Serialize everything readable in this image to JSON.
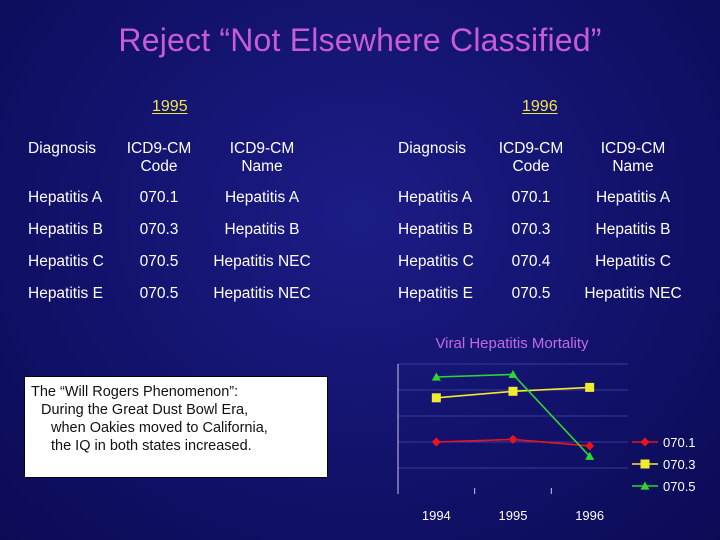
{
  "title": "Reject “Not Elsewhere Classified”",
  "table_1995": {
    "year": "1995",
    "headers": [
      "Diagnosis",
      "ICD9-CM Code",
      "ICD9-CM Name"
    ],
    "rows": [
      [
        "Hepatitis A",
        "070.1",
        "Hepatitis A"
      ],
      [
        "Hepatitis B",
        "070.3",
        "Hepatitis B"
      ],
      [
        "Hepatitis C",
        "070.5",
        "Hepatitis NEC"
      ],
      [
        "Hepatitis E",
        "070.5",
        "Hepatitis NEC"
      ]
    ]
  },
  "table_1996": {
    "year": "1996",
    "headers": [
      "Diagnosis",
      "ICD9-CM Code",
      "ICD9-CM Name"
    ],
    "rows": [
      [
        "Hepatitis A",
        "070.1",
        "Hepatitis A"
      ],
      [
        "Hepatitis B",
        "070.3",
        "Hepatitis B"
      ],
      [
        "Hepatitis C",
        "070.4",
        "Hepatitis C"
      ],
      [
        "Hepatitis E",
        "070.5",
        "Hepatitis NEC"
      ]
    ]
  },
  "note": {
    "line1": "The “Will Rogers Phenomenon”:",
    "line2": "During the Great Dust Bowl Era,",
    "line3": "when  Oakies moved to California,",
    "line4": "the IQ in both states increased."
  },
  "chart_data": {
    "type": "line",
    "title": "Viral Hepatitis Mortality",
    "categories": [
      "1994",
      "1995",
      "1996"
    ],
    "ylim": [
      0,
      10
    ],
    "grid": "horizontal",
    "legend_position": "right",
    "series": [
      {
        "name": "070.1",
        "values": [
          4.0,
          4.2,
          3.7
        ],
        "color": "#e8141e",
        "marker": "diamond"
      },
      {
        "name": "070.3",
        "values": [
          7.4,
          7.9,
          8.2
        ],
        "color": "#f2ea2f",
        "marker": "square"
      },
      {
        "name": "070.5",
        "values": [
          9.0,
          9.2,
          2.9
        ],
        "color": "#2fd62f",
        "marker": "triangle"
      }
    ]
  }
}
